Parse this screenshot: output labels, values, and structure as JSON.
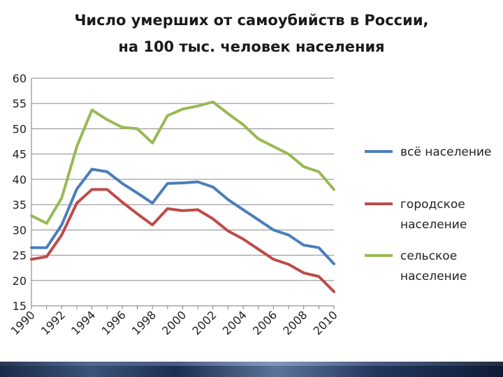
{
  "chart_data": {
    "type": "line",
    "title_line1": "Число умерших от самоубийств в России,",
    "title_line2": "на 100 тыс. человек населения",
    "xlabel": "",
    "ylabel": "",
    "ylim": [
      15,
      60
    ],
    "yticks": [
      "15",
      "20",
      "25",
      "30",
      "35",
      "40",
      "45",
      "50",
      "55",
      "60"
    ],
    "xlim": [
      1990,
      2010
    ],
    "xticks": [
      "1990",
      "1992",
      "1994",
      "1996",
      "1998",
      "2000",
      "2002",
      "2004",
      "2006",
      "2008",
      "2010"
    ],
    "grid": true,
    "legend_position": "right",
    "x": [
      1990,
      1991,
      1992,
      1993,
      1994,
      1995,
      1996,
      1997,
      1998,
      1999,
      2000,
      2001,
      2002,
      2003,
      2004,
      2005,
      2006,
      2007,
      2008,
      2009,
      2010
    ],
    "series": [
      {
        "name": "всё население",
        "legend_lines": [
          "всё население"
        ],
        "color": "#4a7ebb",
        "values": [
          26.5,
          26.5,
          31.0,
          38.1,
          42.0,
          41.5,
          39.2,
          37.3,
          35.3,
          39.2,
          39.3,
          39.5,
          38.5,
          36.0,
          34.0,
          32.0,
          30.0,
          29.0,
          27.0,
          26.5,
          23.3
        ]
      },
      {
        "name": "городское население",
        "legend_lines": [
          "городское",
          "население"
        ],
        "color": "#be4b48",
        "values": [
          24.2,
          24.7,
          29.0,
          35.3,
          38.0,
          38.0,
          35.5,
          33.2,
          31.0,
          34.2,
          33.8,
          34.0,
          32.2,
          29.8,
          28.2,
          26.2,
          24.2,
          23.2,
          21.5,
          20.8,
          17.8
        ]
      },
      {
        "name": "сельское население",
        "legend_lines": [
          "сельское",
          "население"
        ],
        "color": "#98b954",
        "values": [
          32.8,
          31.3,
          36.3,
          46.5,
          53.7,
          51.8,
          50.3,
          50.0,
          47.2,
          52.6,
          53.9,
          54.5,
          55.3,
          53.0,
          50.8,
          48.0,
          46.5,
          45.0,
          42.5,
          41.5,
          38.0
        ]
      }
    ]
  }
}
